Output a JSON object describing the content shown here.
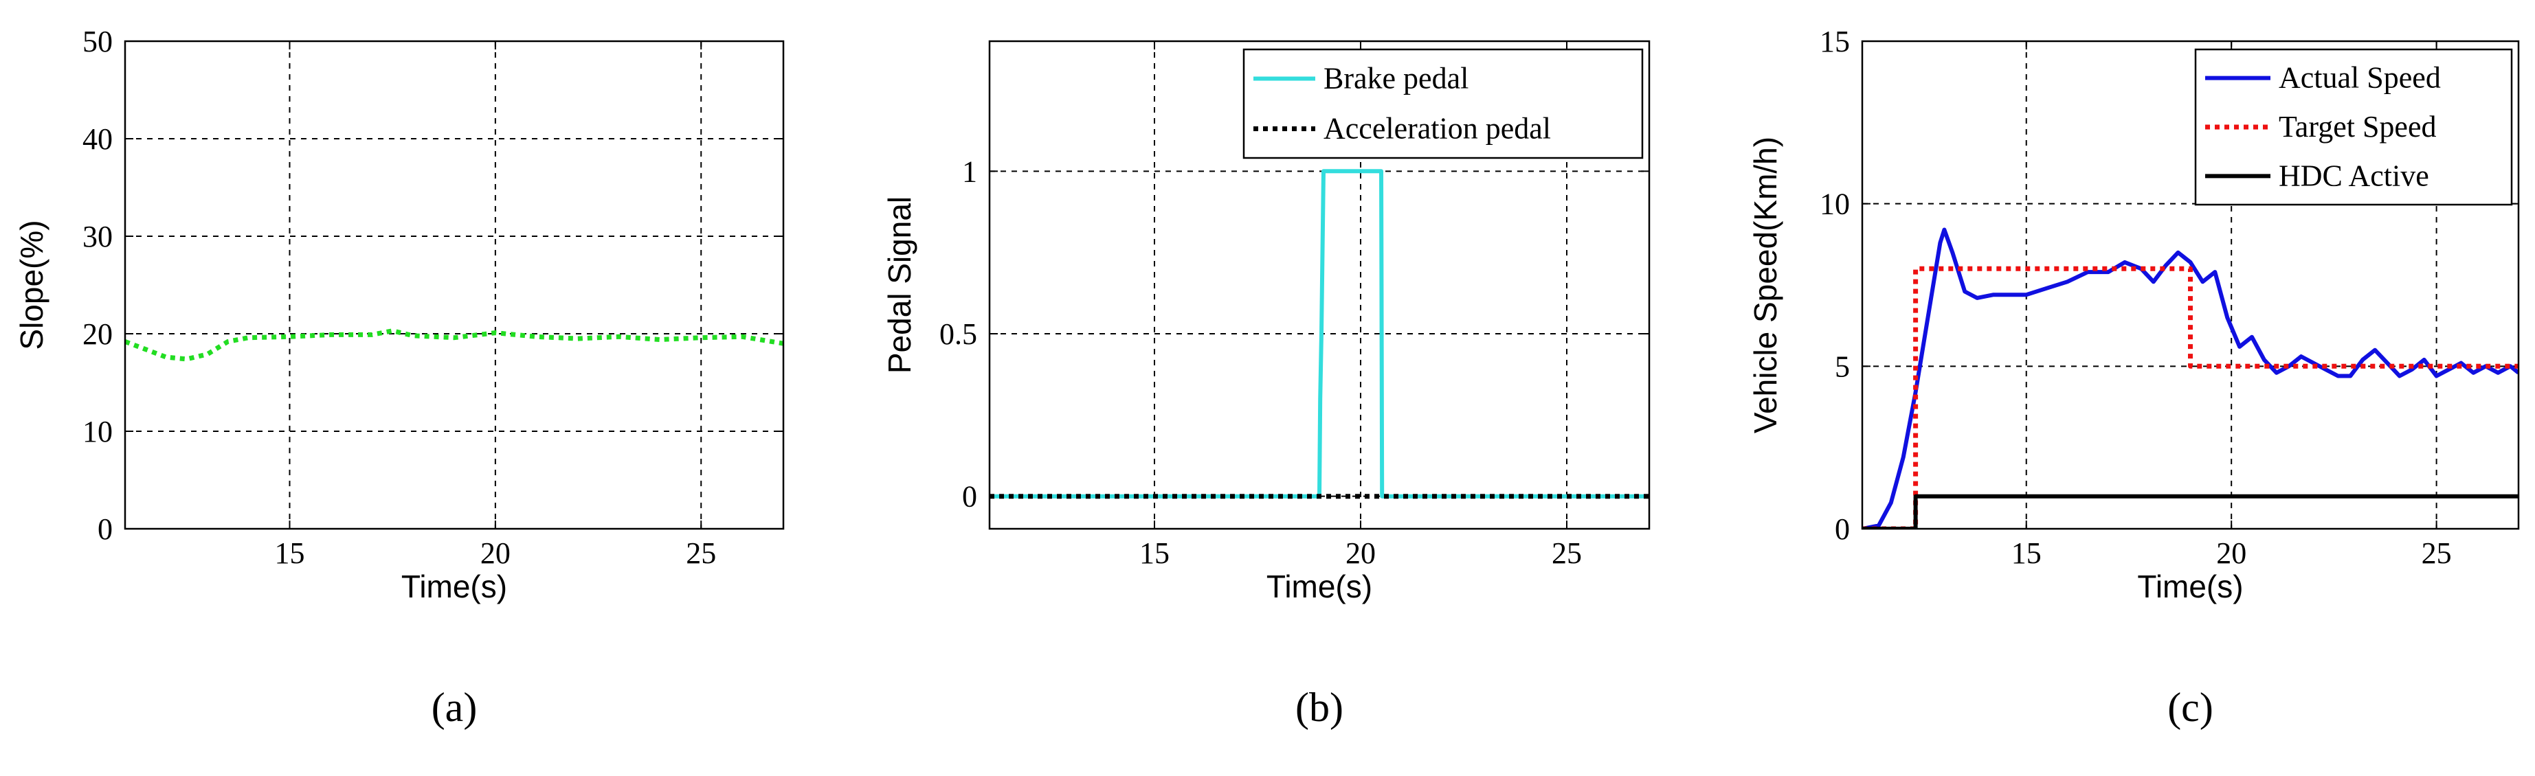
{
  "chart_data": [
    {
      "id": "a",
      "type": "line",
      "panel_label": "(a)",
      "title": "",
      "xlabel": "Time(s)",
      "ylabel": "Slope(%)",
      "xlim": [
        11,
        27
      ],
      "ylim": [
        0,
        50
      ],
      "xticks": [
        15,
        20,
        25
      ],
      "yticks": [
        0,
        10,
        20,
        30,
        40,
        50
      ],
      "grid": true,
      "legend": null,
      "series": [
        {
          "color": "#22dd22",
          "dash": "dotted",
          "x": [
            11,
            11.5,
            12,
            12.5,
            13,
            13.5,
            14,
            15,
            16,
            17,
            17.5,
            18,
            19,
            20,
            21,
            22,
            23,
            24,
            25,
            26,
            27
          ],
          "y": [
            19.2,
            18.4,
            17.6,
            17.4,
            17.9,
            19.2,
            19.6,
            19.7,
            19.9,
            19.9,
            20.3,
            19.8,
            19.6,
            20.1,
            19.7,
            19.5,
            19.7,
            19.4,
            19.6,
            19.7,
            19.0
          ]
        }
      ]
    },
    {
      "id": "b",
      "type": "line",
      "panel_label": "(b)",
      "title": "",
      "xlabel": "Time(s)",
      "ylabel": "Pedal Signal",
      "xlim": [
        11,
        27
      ],
      "ylim": [
        -0.1,
        1.4
      ],
      "xticks": [
        15,
        20,
        25
      ],
      "yticks": [
        0,
        0.5,
        1
      ],
      "ytick_labels": [
        "0",
        "0.5",
        "1"
      ],
      "grid": true,
      "legend": "top-right",
      "series": [
        {
          "name": "Brake pedal",
          "color": "#33dddd",
          "dash": "solid",
          "x": [
            11,
            19.0,
            19.02,
            19.05,
            19.1,
            20.5,
            20.52,
            27
          ],
          "y": [
            0,
            0,
            0.3,
            0.5,
            1,
            1,
            0,
            0
          ]
        },
        {
          "name": "Acceleration pedal",
          "color": "#000000",
          "dash": "dotted",
          "x": [
            11,
            27
          ],
          "y": [
            0,
            0
          ]
        }
      ]
    },
    {
      "id": "c",
      "type": "line",
      "panel_label": "(c)",
      "title": "",
      "xlabel": "Time(s)",
      "ylabel": "Vehicle Speed(Km/h)",
      "xlim": [
        11,
        27
      ],
      "ylim": [
        0,
        15
      ],
      "xticks": [
        15,
        20,
        25
      ],
      "yticks": [
        0,
        5,
        10,
        15
      ],
      "grid": true,
      "legend": "top-right",
      "series": [
        {
          "name": "Actual Speed",
          "color": "#1010e0",
          "dash": "solid",
          "x": [
            11,
            11.4,
            11.7,
            12.0,
            12.3,
            12.6,
            12.9,
            13.0,
            13.2,
            13.5,
            13.8,
            14.2,
            14.6,
            15,
            15.5,
            16,
            16.5,
            17,
            17.4,
            17.8,
            18.1,
            18.4,
            18.7,
            19.0,
            19.3,
            19.6,
            19.9,
            20.2,
            20.5,
            20.8,
            21.1,
            21.4,
            21.7,
            22.0,
            22.3,
            22.6,
            22.9,
            23.2,
            23.5,
            23.8,
            24.1,
            24.4,
            24.7,
            25.0,
            25.3,
            25.6,
            25.9,
            26.2,
            26.5,
            26.8,
            27
          ],
          "y": [
            0,
            0.1,
            0.8,
            2.2,
            4.2,
            6.5,
            8.8,
            9.2,
            8.5,
            7.3,
            7.1,
            7.2,
            7.2,
            7.2,
            7.4,
            7.6,
            7.9,
            7.9,
            8.2,
            8.0,
            7.6,
            8.1,
            8.5,
            8.2,
            7.6,
            7.9,
            6.5,
            5.6,
            5.9,
            5.2,
            4.8,
            5.0,
            5.3,
            5.1,
            4.9,
            4.7,
            4.7,
            5.2,
            5.5,
            5.1,
            4.7,
            4.9,
            5.2,
            4.7,
            4.9,
            5.1,
            4.8,
            5.0,
            4.8,
            5.0,
            4.8
          ]
        },
        {
          "name": "Target Speed",
          "color": "#ee1111",
          "dash": "dotted",
          "x": [
            11,
            12.3,
            12.3,
            19.0,
            19.0,
            27
          ],
          "y": [
            0,
            0,
            8,
            8,
            5,
            5
          ]
        },
        {
          "name": "HDC Active",
          "color": "#000000",
          "dash": "solid",
          "x": [
            11,
            12.3,
            12.3,
            27
          ],
          "y": [
            0,
            0,
            1,
            1
          ]
        }
      ]
    }
  ]
}
